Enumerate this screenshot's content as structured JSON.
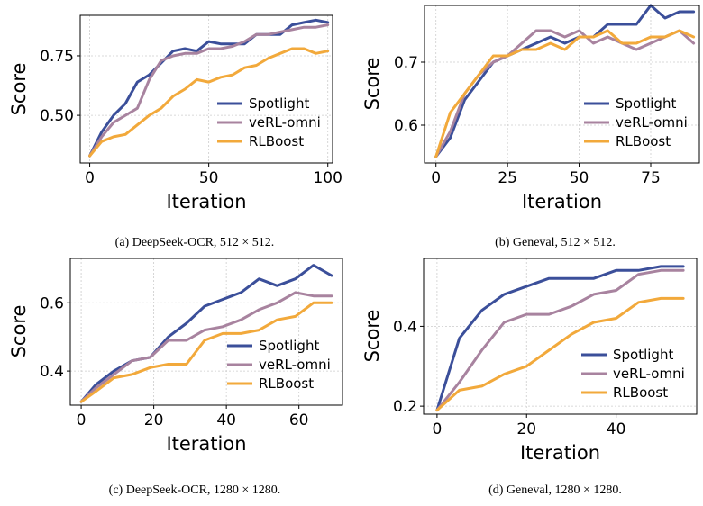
{
  "chart_data": [
    {
      "type": "line",
      "caption": "(a) DeepSeek-OCR, 512 × 512.",
      "xlabel": "Iteration",
      "ylabel": "Score",
      "xlim": [
        -4,
        102
      ],
      "ylim": [
        0.3,
        0.92
      ],
      "xticks": [
        0,
        50,
        100
      ],
      "xtick_labels": [
        "0",
        "50",
        "100"
      ],
      "yticks": [
        0.5,
        0.75
      ],
      "ytick_labels": [
        "0.50",
        "0.75"
      ],
      "grid": true,
      "legend_position": "lower-right",
      "series": [
        {
          "name": "Spotlight",
          "color": "#3b4f9a",
          "x": [
            0,
            5,
            10,
            15,
            20,
            25,
            30,
            35,
            40,
            45,
            50,
            55,
            60,
            65,
            70,
            75,
            80,
            85,
            90,
            95,
            100
          ],
          "y": [
            0.33,
            0.43,
            0.5,
            0.55,
            0.64,
            0.67,
            0.72,
            0.77,
            0.78,
            0.77,
            0.81,
            0.8,
            0.8,
            0.8,
            0.84,
            0.84,
            0.84,
            0.88,
            0.89,
            0.9,
            0.89
          ]
        },
        {
          "name": "veRL-omni",
          "color": "#a8839f",
          "x": [
            0,
            5,
            10,
            15,
            20,
            25,
            30,
            35,
            40,
            45,
            50,
            55,
            60,
            65,
            70,
            75,
            80,
            85,
            90,
            95,
            100
          ],
          "y": [
            0.33,
            0.41,
            0.47,
            0.5,
            0.53,
            0.65,
            0.73,
            0.75,
            0.76,
            0.76,
            0.78,
            0.78,
            0.79,
            0.81,
            0.84,
            0.84,
            0.85,
            0.86,
            0.87,
            0.87,
            0.88
          ]
        },
        {
          "name": "RLBoost",
          "color": "#f2a93b",
          "x": [
            0,
            5,
            10,
            15,
            20,
            25,
            30,
            35,
            40,
            45,
            50,
            55,
            60,
            65,
            70,
            75,
            80,
            85,
            90,
            95,
            100
          ],
          "y": [
            0.33,
            0.39,
            0.41,
            0.42,
            0.46,
            0.5,
            0.53,
            0.58,
            0.61,
            0.65,
            0.64,
            0.66,
            0.67,
            0.7,
            0.71,
            0.74,
            0.76,
            0.78,
            0.78,
            0.76,
            0.77
          ]
        }
      ]
    },
    {
      "type": "line",
      "caption": "(b) Geneval, 512 × 512.",
      "xlabel": "Iteration",
      "ylabel": "Score",
      "xlim": [
        -4,
        92
      ],
      "ylim": [
        0.54,
        0.79
      ],
      "xticks": [
        0,
        25,
        50,
        75
      ],
      "xtick_labels": [
        "0",
        "25",
        "50",
        "75"
      ],
      "yticks": [
        0.6,
        0.7
      ],
      "ytick_labels": [
        "0.6",
        "0.7"
      ],
      "grid": true,
      "legend_position": "lower-right",
      "series": [
        {
          "name": "Spotlight",
          "color": "#3b4f9a",
          "x": [
            0,
            5,
            10,
            15,
            20,
            25,
            30,
            35,
            40,
            45,
            50,
            55,
            60,
            65,
            70,
            75,
            80,
            85,
            90
          ],
          "y": [
            0.55,
            0.58,
            0.64,
            0.67,
            0.7,
            0.71,
            0.72,
            0.73,
            0.74,
            0.73,
            0.74,
            0.74,
            0.76,
            0.76,
            0.76,
            0.79,
            0.77,
            0.78,
            0.78
          ]
        },
        {
          "name": "veRL-omni",
          "color": "#a8839f",
          "x": [
            0,
            5,
            10,
            15,
            20,
            25,
            30,
            35,
            40,
            45,
            50,
            55,
            60,
            65,
            70,
            75,
            80,
            85,
            90
          ],
          "y": [
            0.55,
            0.59,
            0.65,
            0.68,
            0.7,
            0.71,
            0.73,
            0.75,
            0.75,
            0.74,
            0.75,
            0.73,
            0.74,
            0.73,
            0.72,
            0.73,
            0.74,
            0.75,
            0.73
          ]
        },
        {
          "name": "RLBoost",
          "color": "#f2a93b",
          "x": [
            0,
            5,
            10,
            15,
            20,
            25,
            30,
            35,
            40,
            45,
            50,
            55,
            60,
            65,
            70,
            75,
            80,
            85,
            90
          ],
          "y": [
            0.55,
            0.62,
            0.65,
            0.68,
            0.71,
            0.71,
            0.72,
            0.72,
            0.73,
            0.72,
            0.74,
            0.74,
            0.75,
            0.73,
            0.73,
            0.74,
            0.74,
            0.75,
            0.74
          ]
        }
      ]
    },
    {
      "type": "line",
      "caption": "(c) DeepSeek-OCR, 1280 × 1280.",
      "xlabel": "Iteration",
      "ylabel": "Score",
      "xlim": [
        -3,
        72
      ],
      "ylim": [
        0.3,
        0.73
      ],
      "xticks": [
        0,
        20,
        40,
        60
      ],
      "xtick_labels": [
        "0",
        "20",
        "40",
        "60"
      ],
      "yticks": [
        0.4,
        0.6
      ],
      "ytick_labels": [
        "0.4",
        "0.6"
      ],
      "grid": true,
      "legend_position": "lower-right",
      "series": [
        {
          "name": "Spotlight",
          "color": "#3b4f9a",
          "x": [
            0,
            4,
            9,
            14,
            19,
            24,
            29,
            34,
            39,
            44,
            49,
            54,
            59,
            64,
            69
          ],
          "y": [
            0.31,
            0.36,
            0.4,
            0.43,
            0.44,
            0.5,
            0.54,
            0.59,
            0.61,
            0.63,
            0.67,
            0.65,
            0.67,
            0.71,
            0.68
          ]
        },
        {
          "name": "veRL-omni",
          "color": "#a8839f",
          "x": [
            0,
            4,
            9,
            14,
            19,
            24,
            29,
            34,
            39,
            44,
            49,
            54,
            59,
            64,
            69
          ],
          "y": [
            0.31,
            0.35,
            0.39,
            0.43,
            0.44,
            0.49,
            0.49,
            0.52,
            0.53,
            0.55,
            0.58,
            0.6,
            0.63,
            0.62,
            0.62
          ]
        },
        {
          "name": "RLBoost",
          "color": "#f2a93b",
          "x": [
            0,
            4,
            9,
            14,
            19,
            24,
            29,
            34,
            39,
            44,
            49,
            54,
            59,
            64,
            69
          ],
          "y": [
            0.31,
            0.34,
            0.38,
            0.39,
            0.41,
            0.42,
            0.42,
            0.49,
            0.51,
            0.51,
            0.52,
            0.55,
            0.56,
            0.6,
            0.6
          ]
        }
      ]
    },
    {
      "type": "line",
      "caption": "(d) Geneval, 1280 × 1280.",
      "xlabel": "Iteration",
      "ylabel": "Score",
      "xlim": [
        -3,
        58
      ],
      "ylim": [
        0.18,
        0.57
      ],
      "xticks": [
        0,
        20,
        40
      ],
      "xtick_labels": [
        "0",
        "20",
        "40"
      ],
      "yticks": [
        0.2,
        0.4
      ],
      "ytick_labels": [
        "0.2",
        "0.4"
      ],
      "grid": true,
      "legend_position": "lower-right",
      "series": [
        {
          "name": "Spotlight",
          "color": "#3b4f9a",
          "x": [
            0,
            5,
            10,
            15,
            20,
            25,
            30,
            35,
            40,
            45,
            50,
            55
          ],
          "y": [
            0.19,
            0.37,
            0.44,
            0.48,
            0.5,
            0.52,
            0.52,
            0.52,
            0.54,
            0.54,
            0.55,
            0.55
          ]
        },
        {
          "name": "veRL-omni",
          "color": "#a8839f",
          "x": [
            0,
            5,
            10,
            15,
            20,
            25,
            30,
            35,
            40,
            45,
            50,
            55
          ],
          "y": [
            0.19,
            0.26,
            0.34,
            0.41,
            0.43,
            0.43,
            0.45,
            0.48,
            0.49,
            0.53,
            0.54,
            0.54
          ]
        },
        {
          "name": "RLBoost",
          "color": "#f2a93b",
          "x": [
            0,
            5,
            10,
            15,
            20,
            25,
            30,
            35,
            40,
            45,
            50,
            55
          ],
          "y": [
            0.19,
            0.24,
            0.25,
            0.28,
            0.3,
            0.34,
            0.38,
            0.41,
            0.42,
            0.46,
            0.47,
            0.47
          ]
        }
      ]
    }
  ]
}
